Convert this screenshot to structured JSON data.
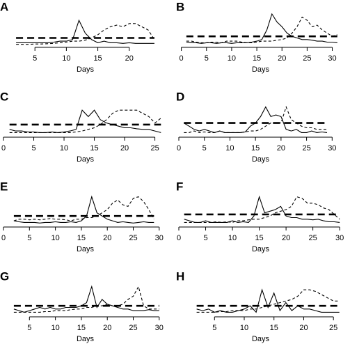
{
  "chart_data": [
    {
      "type": "line",
      "title": "A",
      "xlabel": "Days",
      "xlim": [
        0,
        26
      ],
      "ylim": [
        0,
        10
      ],
      "xticks": [
        5,
        10,
        15,
        20
      ],
      "x": [
        2,
        3,
        4,
        5,
        6,
        7,
        8,
        9,
        10,
        11,
        12,
        13,
        14,
        15,
        16,
        17,
        18,
        19,
        20,
        21,
        22,
        23,
        24
      ],
      "series": [
        {
          "color": "#000000",
          "dash": "solid",
          "values": [
            1,
            1,
            1,
            1,
            1,
            1,
            1.2,
            1.5,
            1.5,
            2,
            8,
            4,
            2,
            1,
            1.5,
            1,
            1,
            0.8,
            1,
            0.8,
            0.8,
            0.8,
            0.8
          ]
        },
        {
          "color": "#000000",
          "dash": "dashed",
          "values": [
            0.5,
            0.5,
            0.5,
            0.6,
            0.6,
            0.7,
            0.8,
            1,
            1.2,
            1.5,
            1.5,
            1.8,
            2.5,
            3.5,
            5,
            6,
            6.5,
            6,
            7,
            7,
            6,
            5,
            2
          ]
        }
      ],
      "threshold": {
        "value": 2.5,
        "color": "#000000"
      }
    },
    {
      "type": "line",
      "title": "B",
      "xlabel": "Days",
      "xlim": [
        -0.5,
        32
      ],
      "ylim": [
        0,
        10
      ],
      "xticks": [
        0,
        5,
        10,
        15,
        20,
        25,
        30
      ],
      "x": [
        1,
        2,
        3,
        4,
        5,
        6,
        7,
        8,
        9,
        10,
        11,
        12,
        13,
        14,
        15,
        16,
        17,
        18,
        19,
        20,
        21,
        22,
        23,
        24,
        25,
        26,
        27,
        28,
        29,
        30,
        31
      ],
      "series": [
        {
          "color": "#000000",
          "dash": "solid",
          "values": [
            1.2,
            1,
            1,
            0.8,
            1,
            1,
            0.8,
            1,
            1,
            0.8,
            1,
            1,
            1,
            1.2,
            1.5,
            2,
            5,
            10,
            7.5,
            6,
            4,
            3,
            2.5,
            2,
            2,
            1.8,
            1.5,
            1.5,
            1.2,
            1.2,
            1
          ]
        },
        {
          "color": "#000000",
          "dash": "dashed",
          "values": [
            1.5,
            1.5,
            1.2,
            1,
            1,
            1.2,
            1.2,
            1,
            1.5,
            1.5,
            1.5,
            1.2,
            1,
            1,
            1.2,
            1.5,
            1.5,
            1.5,
            1.8,
            2,
            2.5,
            4,
            6,
            9,
            8,
            6,
            6.5,
            5,
            4,
            3,
            3.5
          ]
        }
      ],
      "threshold": {
        "value": 3,
        "color": "#000000"
      }
    },
    {
      "type": "line",
      "title": "C",
      "xlabel": "Days",
      "xlim": [
        0,
        27
      ],
      "ylim": [
        0,
        10
      ],
      "xticks": [
        0,
        5,
        10,
        15,
        20,
        25
      ],
      "x": [
        1,
        2,
        3,
        4,
        5,
        6,
        7,
        8,
        9,
        10,
        11,
        12,
        13,
        14,
        15,
        16,
        17,
        18,
        19,
        20,
        21,
        22,
        23,
        24,
        25,
        26
      ],
      "series": [
        {
          "color": "#000000",
          "dash": "solid",
          "values": [
            2,
            1.5,
            1.5,
            1.2,
            1.2,
            1,
            1,
            1.2,
            1,
            1.2,
            1.5,
            2,
            8,
            6,
            8,
            5,
            4,
            3.5,
            3,
            2.5,
            2.5,
            2.2,
            2,
            2,
            1.5,
            1
          ]
        },
        {
          "color": "#000000",
          "dash": "dashed",
          "values": [
            1,
            1,
            1,
            1,
            1,
            1,
            1,
            1,
            1,
            1,
            1,
            1.2,
            1.5,
            2,
            2.5,
            3.5,
            5,
            7,
            8,
            8,
            8,
            8,
            7,
            6,
            4,
            5.5
          ]
        }
      ],
      "threshold": {
        "value": 3.5,
        "color": "#000000"
      }
    },
    {
      "type": "line",
      "title": "D",
      "xlabel": "Days",
      "xlim": [
        0,
        32
      ],
      "ylim": [
        0,
        10
      ],
      "xticks": [
        0,
        5,
        10,
        15,
        20,
        25,
        30
      ],
      "x": [
        1,
        2,
        3,
        4,
        5,
        6,
        7,
        8,
        9,
        10,
        11,
        12,
        13,
        14,
        15,
        16,
        17,
        18,
        19,
        20,
        21,
        22,
        23,
        24,
        25,
        26,
        27,
        28,
        29
      ],
      "series": [
        {
          "color": "#000000",
          "dash": "solid",
          "values": [
            4,
            3,
            2,
            1.5,
            2,
            1.5,
            1,
            1.5,
            1,
            1,
            1,
            1,
            1.2,
            3,
            4,
            6,
            9,
            6,
            6.5,
            6,
            2,
            1.5,
            2,
            1,
            1,
            1.5,
            1,
            1.2,
            1
          ]
        },
        {
          "color": "#000000",
          "dash": "dashed",
          "values": [
            1,
            1,
            1.5,
            1,
            1.2,
            1,
            1,
            1.5,
            1,
            1,
            1,
            1,
            1.2,
            1.5,
            1.5,
            2,
            3,
            4,
            4,
            4,
            9,
            5,
            4,
            3,
            2.5,
            2.5,
            2,
            2,
            2
          ]
        }
      ],
      "threshold": {
        "value": 4,
        "color": "#000000"
      }
    },
    {
      "type": "line",
      "title": "E",
      "xlabel": "Days",
      "xlim": [
        0,
        31.5
      ],
      "ylim": [
        0,
        10
      ],
      "xticks": [
        0,
        5,
        10,
        15,
        20,
        25,
        30
      ],
      "x": [
        2,
        3,
        4,
        5,
        6,
        7,
        8,
        9,
        10,
        11,
        12,
        13,
        14,
        15,
        16,
        17,
        18,
        19,
        20,
        21,
        22,
        23,
        24,
        25,
        26,
        27,
        28,
        29
      ],
      "series": [
        {
          "color": "#000000",
          "dash": "solid",
          "values": [
            1.5,
            1.2,
            1,
            1,
            1,
            0.8,
            1,
            1,
            1.2,
            1,
            1,
            1.2,
            1,
            1.5,
            3,
            9,
            4,
            3,
            2,
            1.5,
            1,
            1.2,
            1,
            0.8,
            1,
            1.2,
            1,
            1
          ]
        },
        {
          "color": "#000000",
          "dash": "dashed",
          "values": [
            1.5,
            2,
            2,
            1.8,
            2,
            1.8,
            2,
            2.2,
            2,
            2,
            1.8,
            1.5,
            2,
            2,
            2.5,
            2.5,
            3,
            4,
            5,
            7,
            8,
            6.5,
            6,
            8.5,
            9,
            7.5,
            5,
            2
          ]
        }
      ],
      "threshold": {
        "value": 3,
        "color": "#000000"
      }
    },
    {
      "type": "line",
      "title": "F",
      "xlabel": "Days",
      "xlim": [
        0,
        30.5
      ],
      "ylim": [
        0,
        10
      ],
      "xticks": [
        0,
        5,
        10,
        15,
        20,
        25,
        30
      ],
      "x": [
        1,
        2,
        3,
        4,
        5,
        6,
        7,
        8,
        9,
        10,
        11,
        12,
        13,
        14,
        15,
        16,
        17,
        18,
        19,
        20,
        21,
        22,
        23,
        24,
        25,
        26,
        27,
        28,
        29,
        30
      ],
      "series": [
        {
          "color": "#000000",
          "dash": "solid",
          "values": [
            2,
            1.5,
            1,
            1,
            1.5,
            1,
            1,
            1,
            1,
            1.5,
            1,
            1.2,
            1,
            3,
            9,
            4,
            4.5,
            5,
            6,
            3,
            2.5,
            2.5,
            2,
            2,
            1.8,
            2,
            1.5,
            1.2,
            1.2,
            1
          ]
        },
        {
          "color": "#000000",
          "dash": "dashed",
          "values": [
            1,
            1,
            1,
            1,
            1,
            1,
            1.2,
            1,
            1.2,
            1,
            1.5,
            1.5,
            1.8,
            2,
            2,
            2.5,
            3,
            4,
            4.5,
            5,
            6,
            9,
            8.5,
            7,
            7,
            6.5,
            5.5,
            5,
            3.5,
            2
          ]
        }
      ],
      "threshold": {
        "value": 3.5,
        "color": "#000000"
      }
    },
    {
      "type": "line",
      "title": "G",
      "xlabel": "Days",
      "xlim": [
        0,
        31.5
      ],
      "ylim": [
        0,
        10
      ],
      "xticks": [
        5,
        10,
        15,
        20,
        25,
        30
      ],
      "x": [
        2,
        3,
        4,
        5,
        6,
        7,
        8,
        9,
        10,
        11,
        12,
        13,
        14,
        15,
        16,
        17,
        18,
        19,
        20,
        21,
        22,
        23,
        24,
        25,
        26,
        27,
        28,
        29,
        30
      ],
      "series": [
        {
          "color": "#000000",
          "dash": "solid",
          "values": [
            2,
            1.5,
            1,
            1.5,
            2,
            2.5,
            2,
            2.5,
            2,
            2,
            2.5,
            2.5,
            2.5,
            3,
            4,
            9,
            2.5,
            5,
            3.5,
            3,
            2.5,
            2,
            2,
            1.5,
            1.5,
            1.5,
            1.8,
            1.5,
            1.5
          ]
        },
        {
          "color": "#000000",
          "dash": "dashed",
          "values": [
            1,
            1,
            1,
            1,
            1,
            1,
            1.2,
            1.2,
            1.5,
            1.5,
            1.5,
            1.8,
            2,
            2,
            2.5,
            2.5,
            3,
            3,
            3.5,
            3,
            3,
            3.5,
            5,
            6,
            9,
            3,
            2,
            2,
            2
          ]
        }
      ],
      "threshold": {
        "value": 3,
        "color": "#000000"
      }
    },
    {
      "type": "line",
      "title": "H",
      "xlabel": "Days",
      "xlim": [
        -1,
        26.5
      ],
      "ylim": [
        0,
        10
      ],
      "xticks": [
        5,
        10,
        15,
        20,
        25
      ],
      "x": [
        2,
        3,
        4,
        5,
        6,
        7,
        8,
        9,
        10,
        11,
        12,
        13,
        14,
        15,
        16,
        17,
        18,
        19,
        20,
        21,
        22,
        23,
        24,
        25,
        26
      ],
      "series": [
        {
          "color": "#000000",
          "dash": "solid",
          "values": [
            2,
            1.5,
            2,
            1,
            1.5,
            1,
            1,
            1.5,
            2,
            3,
            1,
            8,
            2.5,
            7,
            1.5,
            4,
            1.5,
            3,
            2,
            2,
            1.5,
            1,
            1,
            1,
            1
          ]
        },
        {
          "color": "#000000",
          "dash": "dashed",
          "values": [
            1,
            1,
            1,
            1,
            1.2,
            1.2,
            1.5,
            1.5,
            1.5,
            2,
            2,
            2.5,
            3,
            3.5,
            4,
            4.5,
            5,
            6,
            8,
            8,
            7.5,
            6.5,
            5.5,
            4.5,
            4.5
          ]
        }
      ],
      "threshold": {
        "value": 3,
        "color": "#000000"
      }
    }
  ]
}
